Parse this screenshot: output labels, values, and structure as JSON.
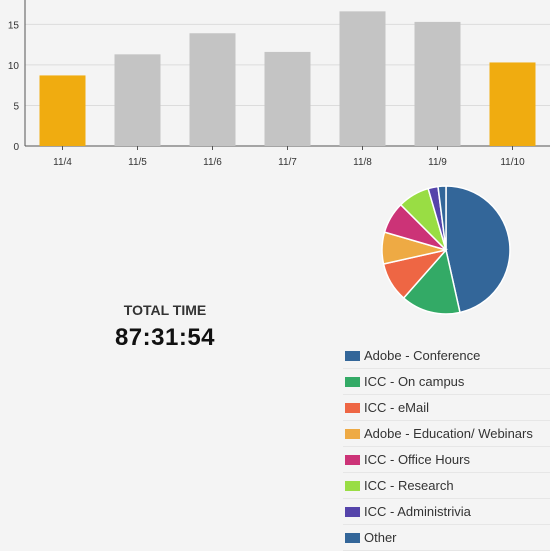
{
  "chart_data": [
    {
      "type": "bar",
      "categories": [
        "11/4",
        "11/5",
        "11/6",
        "11/7",
        "11/8",
        "11/9",
        "11/10"
      ],
      "values": [
        8.7,
        11.3,
        13.9,
        11.6,
        16.6,
        15.3,
        10.3
      ],
      "ylim": [
        0,
        18
      ],
      "yticks": [
        0,
        5,
        10,
        15
      ],
      "grid": true,
      "highlighted_categories": [
        "11/4",
        "11/10"
      ],
      "colors": {
        "highlight": "#f0ac10",
        "default": "#c4c4c4",
        "grid": "#dcdcdc",
        "axis": "#555555"
      }
    },
    {
      "type": "pie",
      "slices": [
        {
          "label": "Adobe - Conference",
          "value": 46.5,
          "color": "#336699"
        },
        {
          "label": "ICC - On campus",
          "value": 15.0,
          "color": "#33aa66"
        },
        {
          "label": "ICC - eMail",
          "value": 10.0,
          "color": "#ee6644"
        },
        {
          "label": "Adobe - Education/ Webinars",
          "value": 8.0,
          "color": "#eeaa44"
        },
        {
          "label": "ICC - Office Hours",
          "value": 8.0,
          "color": "#cc3377"
        },
        {
          "label": "ICC - Research",
          "value": 8.0,
          "color": "#99dd44"
        },
        {
          "label": "ICC - Administrivia",
          "value": 2.5,
          "color": "#5544aa"
        },
        {
          "label": "Other",
          "value": 2.0,
          "color": "#336699"
        }
      ]
    }
  ],
  "total": {
    "label": "TOTAL TIME",
    "value": "87:31:54"
  }
}
